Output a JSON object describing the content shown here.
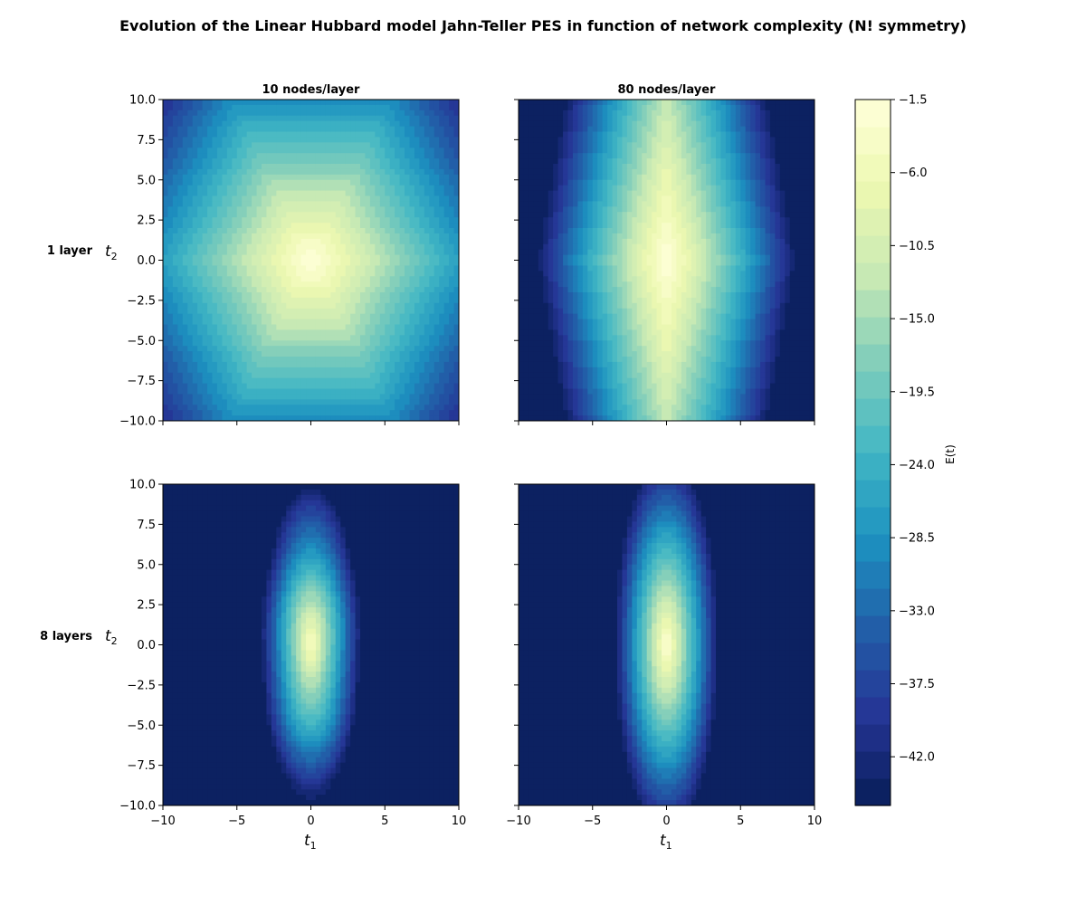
{
  "figure": {
    "title": "Evolution of the Linear Hubbard model Jahn-Teller PES in function of network complexity (N! symmetry)"
  },
  "chart_data": {
    "type": "heatmap",
    "subtype": "filled-contour",
    "columns": [
      "10 nodes/layer",
      "80 nodes/layer"
    ],
    "rows": [
      "1 layer",
      "8 layers"
    ],
    "xlabel_base": "t",
    "xlabel_sub": "1",
    "ylabel_base": "t",
    "ylabel_sub": "2",
    "xlim": [
      -10,
      10
    ],
    "ylim": [
      -10,
      10
    ],
    "x_ticks": [
      "−10",
      "−5",
      "0",
      "5",
      "10"
    ],
    "y_ticks": [
      "10.0",
      "7.5",
      "5.0",
      "2.5",
      "0.0",
      "−2.5",
      "−5.0",
      "−7.5",
      "−10.0"
    ],
    "colorbar": {
      "label": "E(t)",
      "range": [
        -45,
        -1.5
      ],
      "ticks": [
        "−1.5",
        "−6.0",
        "−10.5",
        "−15.0",
        "−19.5",
        "−24.0",
        "−28.5",
        "−33.0",
        "−37.5",
        "−42.0"
      ],
      "colormap": "YlGnBu_r",
      "n_levels": 26
    },
    "panels": [
      {
        "row": "1 layer",
        "column": "10 nodes/layer",
        "max_energy": -1.5,
        "max_at": [
          0,
          0
        ],
        "min_energy": -44,
        "shape": "hexagonal, broad"
      },
      {
        "row": "1 layer",
        "column": "80 nodes/layer",
        "max_energy": -1.5,
        "max_at": [
          0,
          0
        ],
        "min_energy": -44,
        "shape": "diamond, elongated along t2"
      },
      {
        "row": "8 layers",
        "column": "10 nodes/layer",
        "max_energy": -3.5,
        "max_at": [
          0,
          0
        ],
        "min_energy": -44,
        "shape": "elliptical, elongated along t2"
      },
      {
        "row": "8 layers",
        "column": "80 nodes/layer",
        "max_energy": -2.0,
        "max_at": [
          0,
          0
        ],
        "min_energy": -44,
        "shape": "elliptical, elongated along t2"
      }
    ]
  },
  "colors": {
    "colormap_stops": [
      "#081d58",
      "#253494",
      "#225ea8",
      "#1d91c0",
      "#41b6c4",
      "#7fcdbb",
      "#c7e9b4",
      "#edf8b1",
      "#ffffd9"
    ]
  }
}
